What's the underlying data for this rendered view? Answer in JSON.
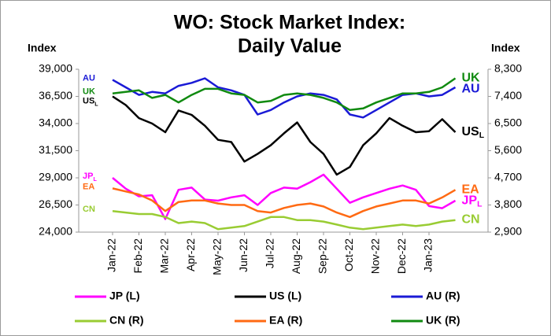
{
  "chart_data": {
    "type": "line",
    "title_lines": [
      "WO: Stock Market Index:",
      "Daily Value"
    ],
    "y_axis_label": "Index",
    "y2_axis_label": "Index",
    "categories": [
      "Jan-22",
      null,
      "Feb-22",
      null,
      "Mar-22",
      null,
      "Apr-22",
      null,
      "May-22",
      null,
      "Jun-22",
      null,
      "Jul-22",
      null,
      "Aug-22",
      null,
      "Sep-22",
      null,
      "Oct-22",
      null,
      "Nov-22",
      null,
      "Dec-22",
      null,
      "Jan-23",
      null,
      null
    ],
    "ylim": [
      24000,
      39000
    ],
    "yticks": [
      {
        "value": 24000,
        "label": "24,000"
      },
      {
        "value": 26500,
        "label": "26,500"
      },
      {
        "value": 29000,
        "label": "29,000"
      },
      {
        "value": 31500,
        "label": "31,500"
      },
      {
        "value": 34000,
        "label": "34,000"
      },
      {
        "value": 36500,
        "label": "36,500"
      },
      {
        "value": 39000,
        "label": "39,000"
      }
    ],
    "y2lim": [
      2900,
      8300
    ],
    "y2ticks": [
      {
        "value": 2900,
        "label": "2,900"
      },
      {
        "value": 3800,
        "label": "3,800"
      },
      {
        "value": 4700,
        "label": "4,700"
      },
      {
        "value": 5600,
        "label": "5,600"
      },
      {
        "value": 6500,
        "label": "6,500"
      },
      {
        "value": 7400,
        "label": "7,400"
      },
      {
        "value": 8300,
        "label": "8,300"
      }
    ],
    "legend": "bottom",
    "series": [
      {
        "name": "JP (L)",
        "tag": "JP",
        "sub": "L",
        "color": "#ff00ff",
        "axis": "y",
        "values": [
          29000,
          28000,
          27300,
          27400,
          25200,
          27900,
          28100,
          27000,
          26900,
          27200,
          27400,
          26500,
          27600,
          28100,
          28000,
          28600,
          29300,
          28000,
          26700,
          27200,
          27600,
          28000,
          28300,
          27900,
          26400,
          26200,
          26900
        ]
      },
      {
        "name": "US (L)",
        "tag": "US",
        "sub": "L",
        "color": "#000000",
        "axis": "y",
        "values": [
          36500,
          35700,
          34500,
          34000,
          33200,
          35200,
          34800,
          33800,
          32500,
          32300,
          30500,
          31200,
          32000,
          33100,
          34100,
          32300,
          31200,
          29300,
          30000,
          32000,
          33100,
          34500,
          33800,
          33200,
          33300,
          34400,
          33200
        ]
      },
      {
        "name": "AU (R)",
        "tag": "AU",
        "color": "#1a1ad6",
        "axis": "y2",
        "values": [
          7950,
          7700,
          7450,
          7550,
          7500,
          7750,
          7850,
          8000,
          7700,
          7600,
          7450,
          6800,
          6950,
          7200,
          7400,
          7500,
          7450,
          7300,
          6800,
          6700,
          6950,
          7200,
          7450,
          7500,
          7400,
          7450,
          7700
        ]
      },
      {
        "name": "CN (R)",
        "tag": "CN",
        "color": "#99cc33",
        "axis": "y2",
        "values": [
          3600,
          3550,
          3500,
          3500,
          3400,
          3200,
          3250,
          3200,
          3000,
          3050,
          3100,
          3250,
          3400,
          3400,
          3300,
          3300,
          3250,
          3150,
          3050,
          3000,
          3050,
          3100,
          3150,
          3100,
          3150,
          3250,
          3300
        ]
      },
      {
        "name": "EA (R)",
        "tag": "EA",
        "color": "#ff6a13",
        "axis": "y2",
        "values": [
          4350,
          4250,
          4150,
          3950,
          3600,
          3900,
          3950,
          3950,
          3850,
          3800,
          3800,
          3600,
          3550,
          3700,
          3800,
          3850,
          3750,
          3550,
          3400,
          3600,
          3750,
          3850,
          3950,
          3950,
          3850,
          4050,
          4300
        ]
      },
      {
        "name": "UK (R)",
        "tag": "UK",
        "color": "#108a10",
        "axis": "y2",
        "values": [
          7500,
          7550,
          7600,
          7350,
          7450,
          7200,
          7450,
          7650,
          7650,
          7500,
          7450,
          7200,
          7250,
          7450,
          7500,
          7450,
          7350,
          7200,
          6950,
          7000,
          7200,
          7350,
          7500,
          7500,
          7550,
          7700,
          8000
        ]
      }
    ]
  }
}
